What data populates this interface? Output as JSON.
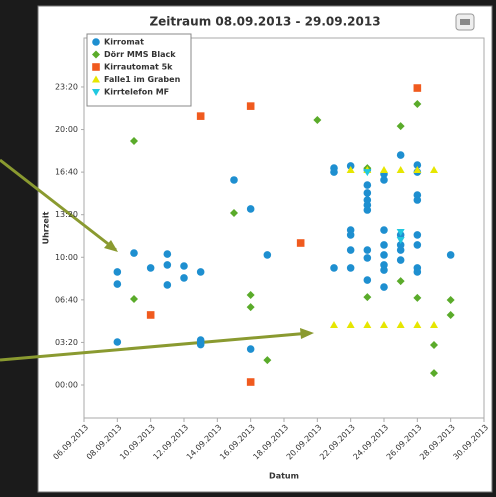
{
  "chart_data": {
    "type": "scatter",
    "title": "Zeitraum 08.09.2013 - 29.09.2013",
    "x_label": "Datum",
    "y_label": "Uhrzeit",
    "xlim": [
      "2013-09-06",
      "2013-09-30"
    ],
    "xticks": [
      {
        "value": "2013-09-06",
        "label": "06.09.2013"
      },
      {
        "value": "2013-09-08",
        "label": "08.09.2013"
      },
      {
        "value": "2013-09-10",
        "label": "10.09.2013"
      },
      {
        "value": "2013-09-12",
        "label": "12.09.2013"
      },
      {
        "value": "2013-09-14",
        "label": "14.09.2013"
      },
      {
        "value": "2013-09-16",
        "label": "16.09.2013"
      },
      {
        "value": "2013-09-18",
        "label": "18.09.2013"
      },
      {
        "value": "2013-09-20",
        "label": "20.09.2013"
      },
      {
        "value": "2013-09-22",
        "label": "22.09.2013"
      },
      {
        "value": "2013-09-24",
        "label": "24.09.2013"
      },
      {
        "value": "2013-09-26",
        "label": "26.09.2013"
      },
      {
        "value": "2013-09-28",
        "label": "28.09.2013"
      },
      {
        "value": "2013-09-30",
        "label": "30.09.2013"
      }
    ],
    "ylim": [
      -155,
      1630
    ],
    "yticks": [
      {
        "value": 0,
        "label": "00:00"
      },
      {
        "value": 200,
        "label": "03:20"
      },
      {
        "value": 400,
        "label": "06:40"
      },
      {
        "value": 600,
        "label": "10:00"
      },
      {
        "value": 800,
        "label": "13:20"
      },
      {
        "value": 1000,
        "label": "16:40"
      },
      {
        "value": 1200,
        "label": "20:00"
      },
      {
        "value": 1400,
        "label": "23:20"
      }
    ],
    "grid": false,
    "legend": "upper left",
    "series": [
      {
        "name": "Kirromat",
        "color": "#1e8fd0",
        "marker": "circle",
        "x": [
          "2013-09-08",
          "2013-09-08",
          "2013-09-08",
          "2013-09-09",
          "2013-09-10",
          "2013-09-11",
          "2013-09-11",
          "2013-09-11",
          "2013-09-12",
          "2013-09-12",
          "2013-09-13",
          "2013-09-13",
          "2013-09-13",
          "2013-09-13",
          "2013-09-15",
          "2013-09-16",
          "2013-09-16",
          "2013-09-17",
          "2013-09-21",
          "2013-09-21",
          "2013-09-21",
          "2013-09-22",
          "2013-09-22",
          "2013-09-22",
          "2013-09-22",
          "2013-09-22",
          "2013-09-23",
          "2013-09-23",
          "2013-09-23",
          "2013-09-23",
          "2013-09-23",
          "2013-09-23",
          "2013-09-23",
          "2013-09-23",
          "2013-09-23",
          "2013-09-24",
          "2013-09-24",
          "2013-09-24",
          "2013-09-24",
          "2013-09-24",
          "2013-09-24",
          "2013-09-24",
          "2013-09-24",
          "2013-09-25",
          "2013-09-25",
          "2013-09-25",
          "2013-09-25",
          "2013-09-25",
          "2013-09-26",
          "2013-09-26",
          "2013-09-26",
          "2013-09-26",
          "2013-09-26",
          "2013-09-26",
          "2013-09-26",
          "2013-09-26",
          "2013-09-28"
        ],
        "values": [
          531,
          474,
          202,
          620,
          550,
          615,
          564,
          470,
          559,
          503,
          531,
          211,
          200,
          190,
          963,
          827,
          169,
          611,
          550,
          1019,
          1000,
          550,
          1029,
          728,
          705,
          634,
          1010,
          939,
          902,
          869,
          845,
          822,
          634,
          597,
          493,
          991,
          963,
          728,
          658,
          611,
          564,
          540,
          460,
          1080,
          705,
          658,
          634,
          587,
          1033,
          1000,
          892,
          869,
          705,
          658,
          550,
          531,
          611
        ]
      },
      {
        "name": "Dörr MMS Black",
        "color": "#5aab2a",
        "marker": "diamond",
        "x": [
          "2013-09-09",
          "2013-09-09",
          "2013-09-15",
          "2013-09-16",
          "2013-09-16",
          "2013-09-17",
          "2013-09-20",
          "2013-09-23",
          "2013-09-23",
          "2013-09-25",
          "2013-09-25",
          "2013-09-26",
          "2013-09-26",
          "2013-09-27",
          "2013-09-27",
          "2013-09-28",
          "2013-09-28"
        ],
        "values": [
          1146,
          404,
          808,
          423,
          366,
          117,
          1245,
          1019,
          413,
          1216,
          488,
          1320,
          409,
          188,
          56,
          399,
          329
        ]
      },
      {
        "name": "Kirrautomat 5k",
        "color": "#f05a1e",
        "marker": "square",
        "x": [
          "2013-09-10",
          "2013-09-13",
          "2013-09-16",
          "2013-09-16",
          "2013-09-19",
          "2013-09-26"
        ],
        "values": [
          329,
          1263,
          1310,
          14,
          667,
          1395
        ]
      },
      {
        "name": "Falle1 im Graben",
        "color": "#e6e600",
        "marker": "triangle",
        "x": [
          "2013-09-22",
          "2013-09-23",
          "2013-09-24",
          "2013-09-25",
          "2013-09-26",
          "2013-09-27",
          "2013-09-21",
          "2013-09-22",
          "2013-09-23",
          "2013-09-24",
          "2013-09-25",
          "2013-09-26",
          "2013-09-27"
        ],
        "values": [
          1010,
          1010,
          1010,
          1010,
          1010,
          1010,
          282,
          282,
          282,
          282,
          282,
          282,
          282
        ]
      },
      {
        "name": "Kirrtelefon MF",
        "color": "#20c8e0",
        "marker": "triangle-down",
        "x": [
          "2013-09-25",
          "2013-09-25",
          "2013-09-23"
        ],
        "values": [
          719,
          681,
          1000
        ]
      }
    ]
  }
}
